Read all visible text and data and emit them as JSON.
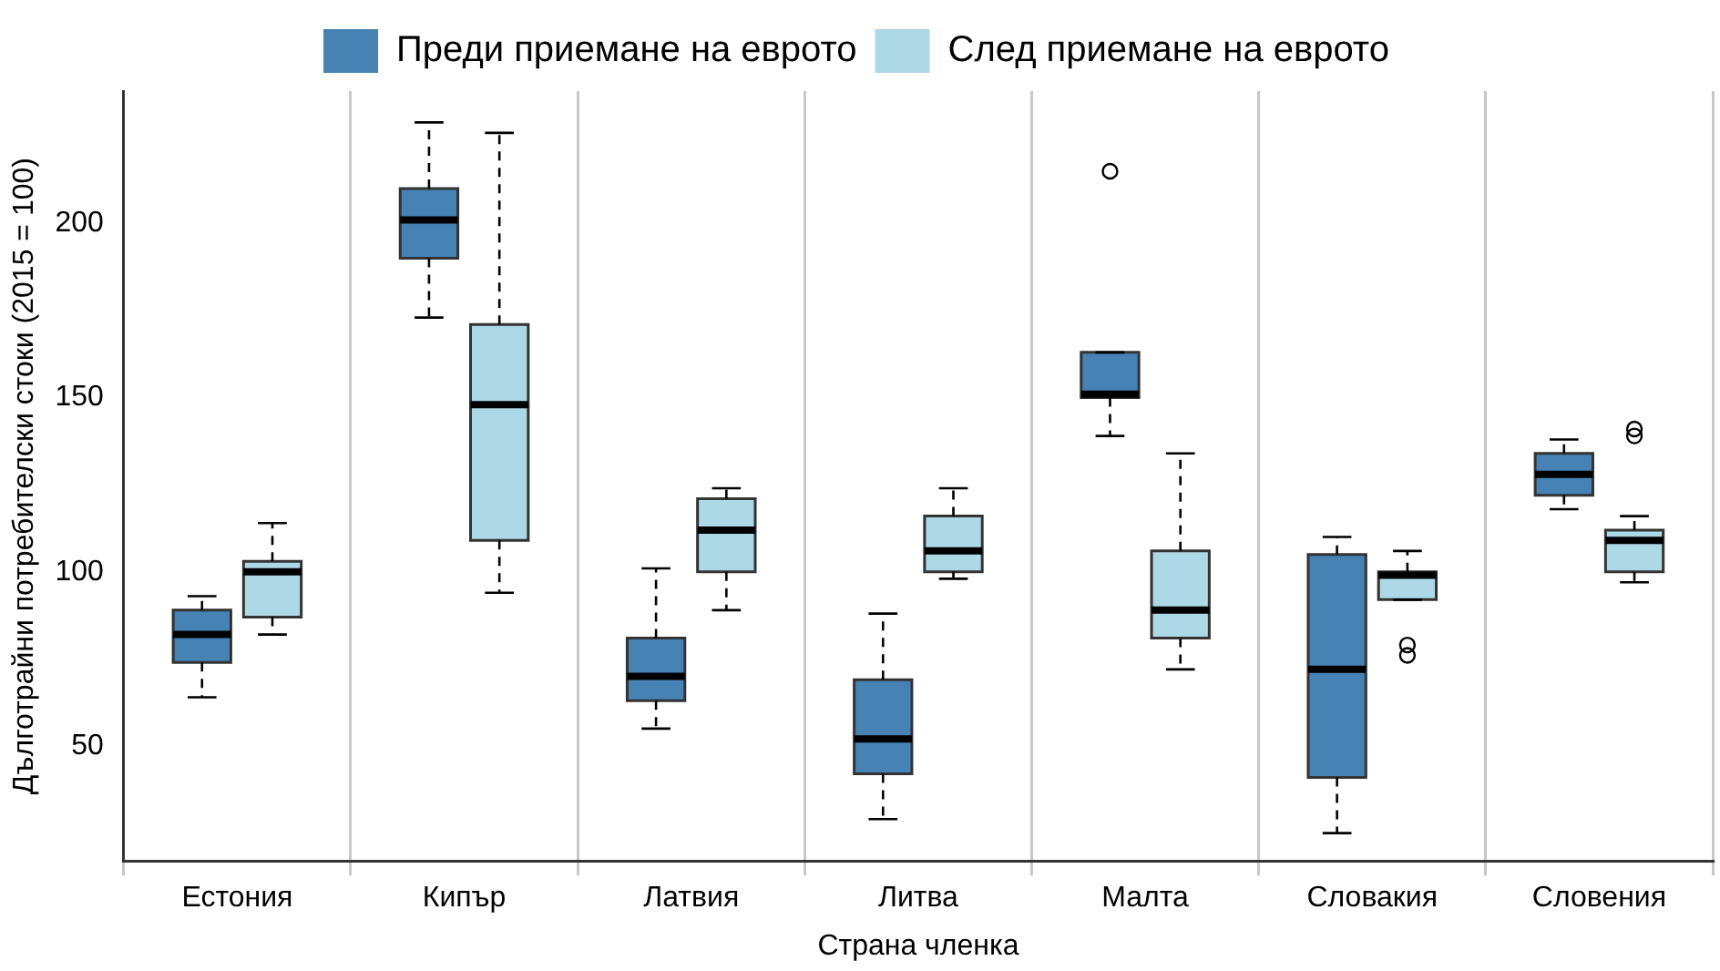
{
  "chart_data": {
    "type": "box",
    "xlabel": "Страна членка",
    "ylabel": "Дълготрайни потребителски стоки (2015 = 100)",
    "categories": [
      "Естония",
      "Кипър",
      "Латвия",
      "Литва",
      "Малта",
      "Словакия",
      "Словения"
    ],
    "ylim": [
      17,
      238
    ],
    "yticks": [
      50,
      100,
      150,
      200
    ],
    "grid": "x",
    "legend": "top",
    "series": [
      {
        "name": "Преди приемане на еврото",
        "color": "#4682b4",
        "boxes": [
          {
            "low": 64,
            "q1": 74,
            "median": 82,
            "q3": 89,
            "high": 93
          },
          {
            "low": 173,
            "q1": 190,
            "median": 201,
            "q3": 210,
            "high": 229
          },
          {
            "low": 55,
            "q1": 63,
            "median": 70,
            "q3": 81,
            "high": 101
          },
          {
            "low": 29,
            "q1": 42,
            "median": 52,
            "q3": 69,
            "high": 88
          },
          {
            "low": 139,
            "q1": 150,
            "median": 151,
            "q3": 163,
            "high": 163,
            "outliers": [
              215
            ]
          },
          {
            "low": 25,
            "q1": 41,
            "median": 72,
            "q3": 105,
            "high": 110
          },
          {
            "low": 118,
            "q1": 122,
            "median": 128,
            "q3": 134,
            "high": 138
          }
        ]
      },
      {
        "name": "След приемане на еврото",
        "color": "#add8e6",
        "boxes": [
          {
            "low": 82,
            "q1": 87,
            "median": 100,
            "q3": 103,
            "high": 114
          },
          {
            "low": 94,
            "q1": 109,
            "median": 148,
            "q3": 171,
            "high": 226
          },
          {
            "low": 89,
            "q1": 100,
            "median": 112,
            "q3": 121,
            "high": 124
          },
          {
            "low": 98,
            "q1": 100,
            "median": 106,
            "q3": 116,
            "high": 124
          },
          {
            "low": 72,
            "q1": 81,
            "median": 89,
            "q3": 106,
            "high": 134
          },
          {
            "low": 92,
            "q1": 92,
            "median": 99,
            "q3": 100,
            "high": 106,
            "outliers": [
              76,
              79
            ]
          },
          {
            "low": 97,
            "q1": 100,
            "median": 109,
            "q3": 112,
            "high": 116,
            "outliers": [
              139,
              141
            ]
          }
        ]
      }
    ]
  }
}
